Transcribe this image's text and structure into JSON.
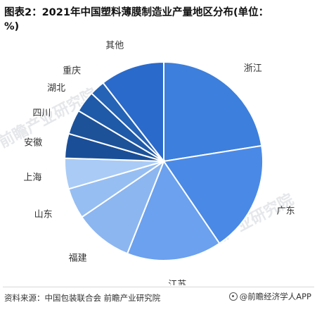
{
  "title": "图表2：2021年中国塑料薄膜制造业产量地区分布(单位：%)",
  "source": "资料来源：中国包装联合会 前瞻产业研究院",
  "brand": "@前瞻经济学人APP",
  "watermark": "前瞻产业研究院",
  "chart_data": {
    "type": "pie",
    "title": "图表2：2021年中国塑料薄膜制造业产量地区分布(单位：%)",
    "start": "12 o'clock",
    "direction": "clockwise",
    "slices": [
      {
        "label": "浙江",
        "value": 22.5,
        "color": "#3d7fdc"
      },
      {
        "label": "广东",
        "value": 18.0,
        "color": "#4a8ae6"
      },
      {
        "label": "江苏",
        "value": 15.5,
        "color": "#6ba1ee"
      },
      {
        "label": "福建",
        "value": 9.5,
        "color": "#8cb6f0"
      },
      {
        "label": "山东",
        "value": 5.0,
        "color": "#96bef2"
      },
      {
        "label": "上海",
        "value": 5.0,
        "color": "#a9cbf6"
      },
      {
        "label": "安徽",
        "value": 4.0,
        "color": "#1a4e97"
      },
      {
        "label": "四川",
        "value": 4.0,
        "color": "#1d5299"
      },
      {
        "label": "湖北",
        "value": 3.5,
        "color": "#1f5aa8"
      },
      {
        "label": "重庆",
        "value": 2.5,
        "color": "#2563b6"
      },
      {
        "label": "其他",
        "value": 10.5,
        "color": "#2a6acb"
      }
    ]
  }
}
